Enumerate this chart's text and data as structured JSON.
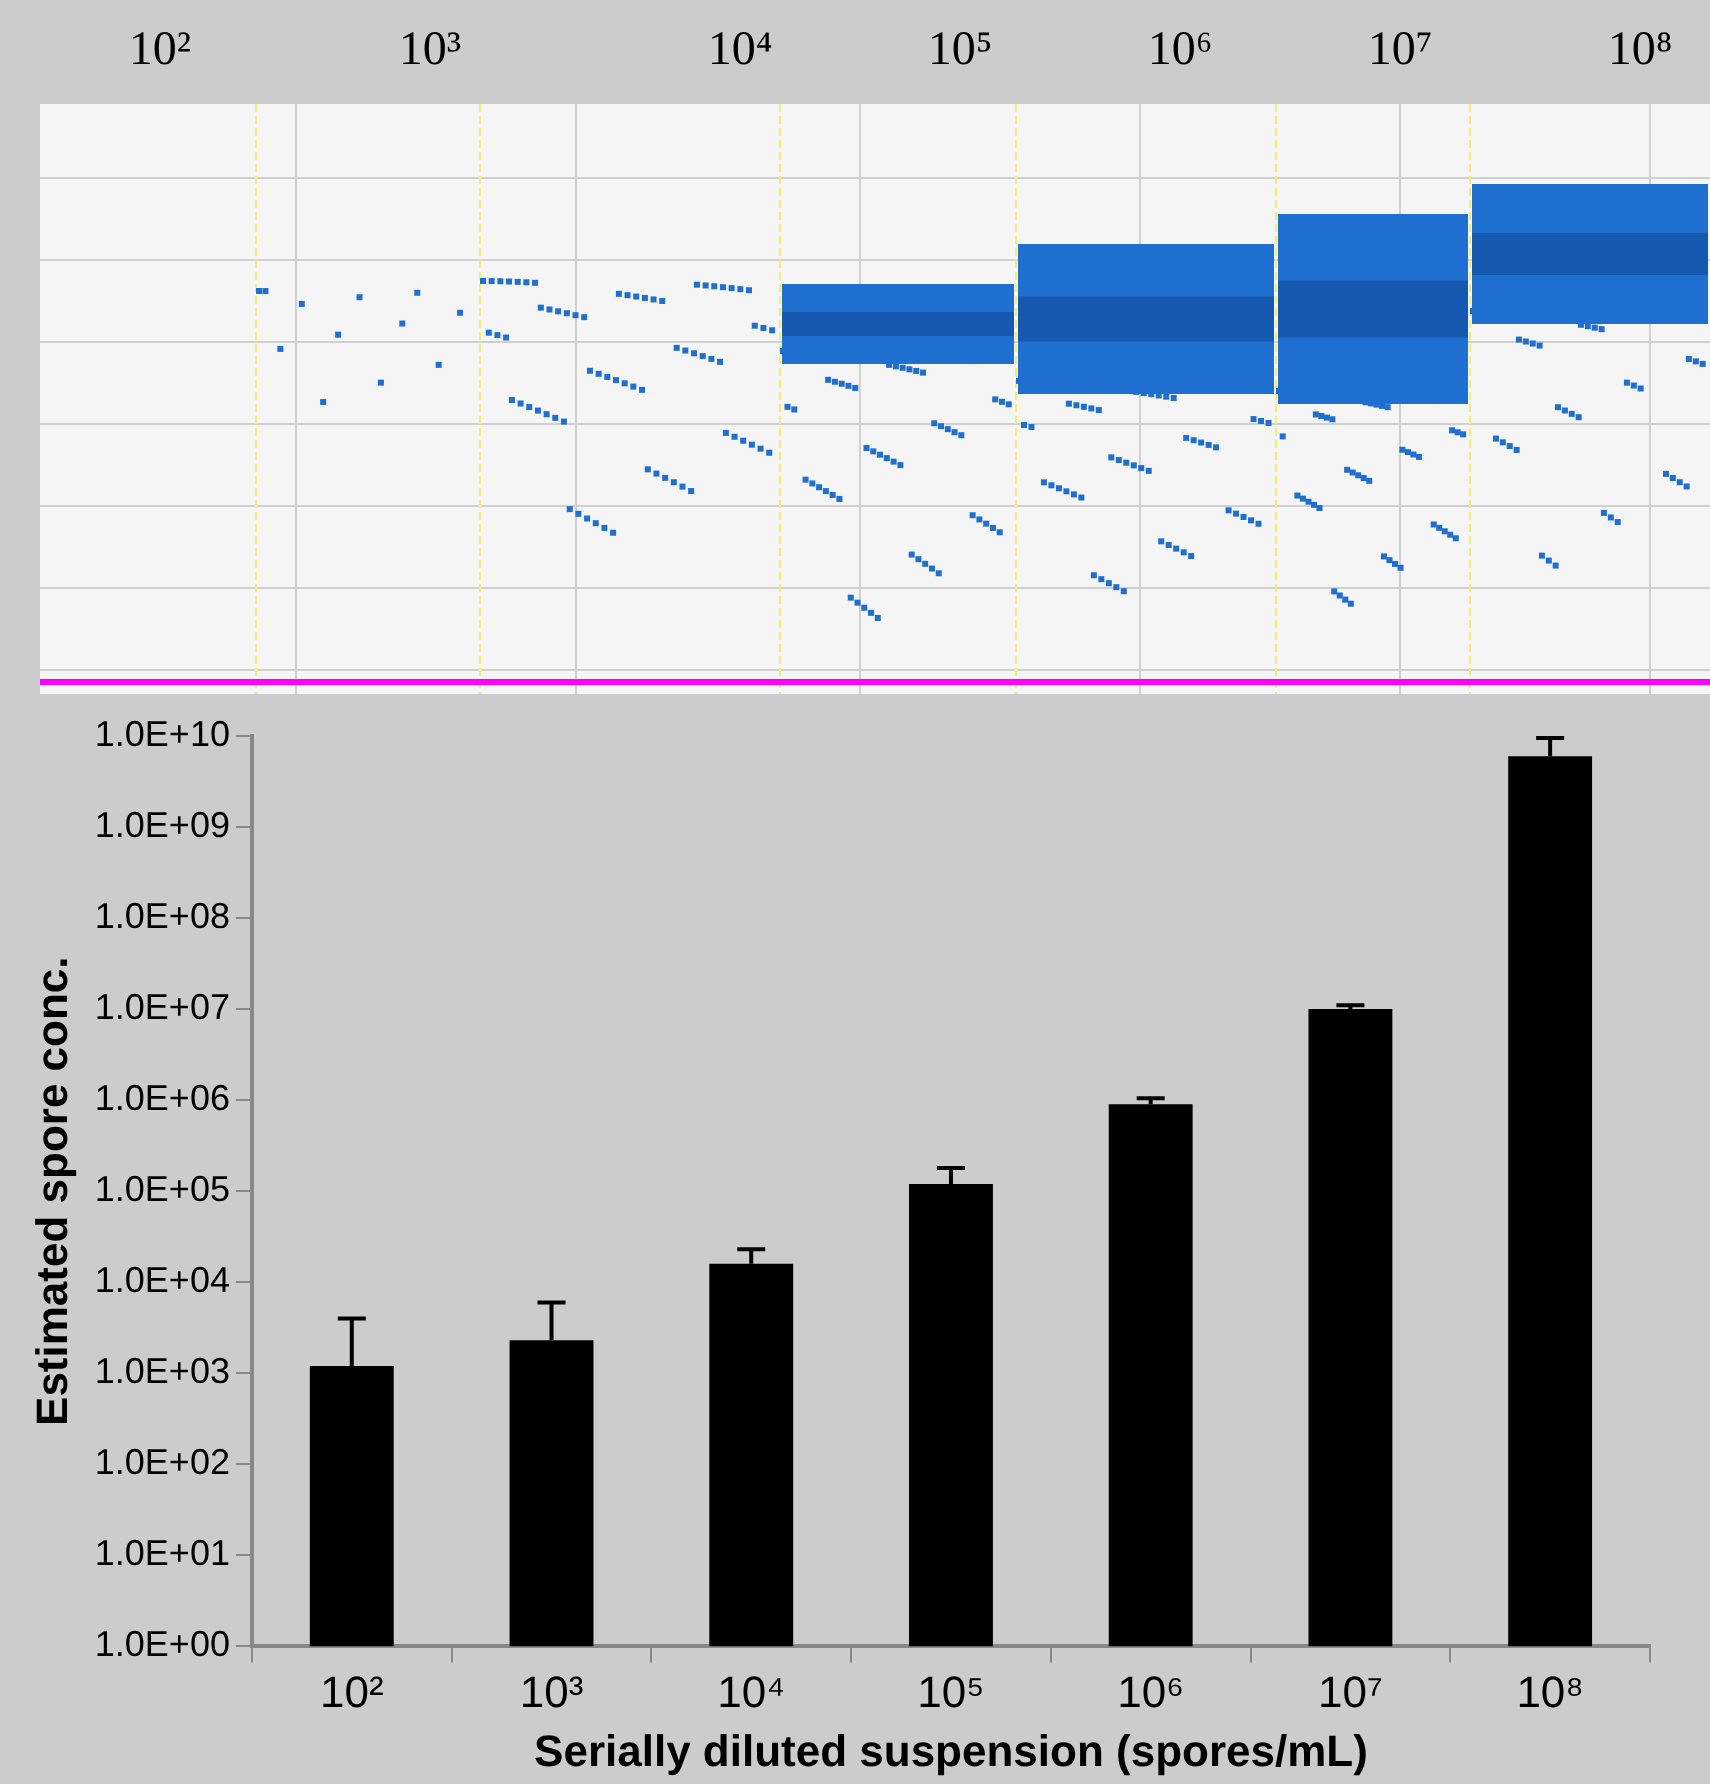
{
  "chart_data": [
    {
      "type": "other",
      "annotations": [
        "10²",
        "10³",
        "10⁴",
        "10⁵",
        "10⁶",
        "10⁷",
        "10⁸"
      ]
    },
    {
      "type": "bar",
      "categories": [
        "10²",
        "10³",
        "10⁴",
        "10⁵",
        "10⁶",
        "10⁷",
        "10⁸"
      ],
      "values": [
        1200,
        2300,
        16000,
        120000,
        900000,
        10000000,
        6000000000
      ],
      "color": "#000000",
      "errors": [
        [
          1200,
          4000
        ],
        [
          2300,
          6000
        ],
        [
          16000,
          23000
        ],
        [
          120000,
          180000
        ],
        [
          900000,
          1050000
        ],
        [
          10000000,
          11000000
        ],
        [
          6000000000,
          9500000000
        ]
      ],
      "log": "y",
      "ylim": [
        1,
        10000000000
      ],
      "yticks": [
        {
          "value": 1,
          "label": "1.0E+00"
        },
        {
          "value": 10,
          "label": "1.0E+01"
        },
        {
          "value": 100,
          "label": "1.0E+02"
        },
        {
          "value": 1000,
          "label": "1.0E+03"
        },
        {
          "value": 10000,
          "label": "1.0E+04"
        },
        {
          "value": 100000,
          "label": "1.0E+05"
        },
        {
          "value": 1000000,
          "label": "1.0E+06"
        },
        {
          "value": 10000000,
          "label": "1.0E+07"
        },
        {
          "value": 100000000,
          "label": "1.0E+08"
        },
        {
          "value": 1000000000,
          "label": "1.0E+09"
        },
        {
          "value": 10000000000,
          "label": "1.0E+10"
        }
      ],
      "xlabel": "Serially diluted suspension (spores/mL)",
      "ylabel": "Estimated spore conc.",
      "grid": false,
      "legend": false
    }
  ]
}
